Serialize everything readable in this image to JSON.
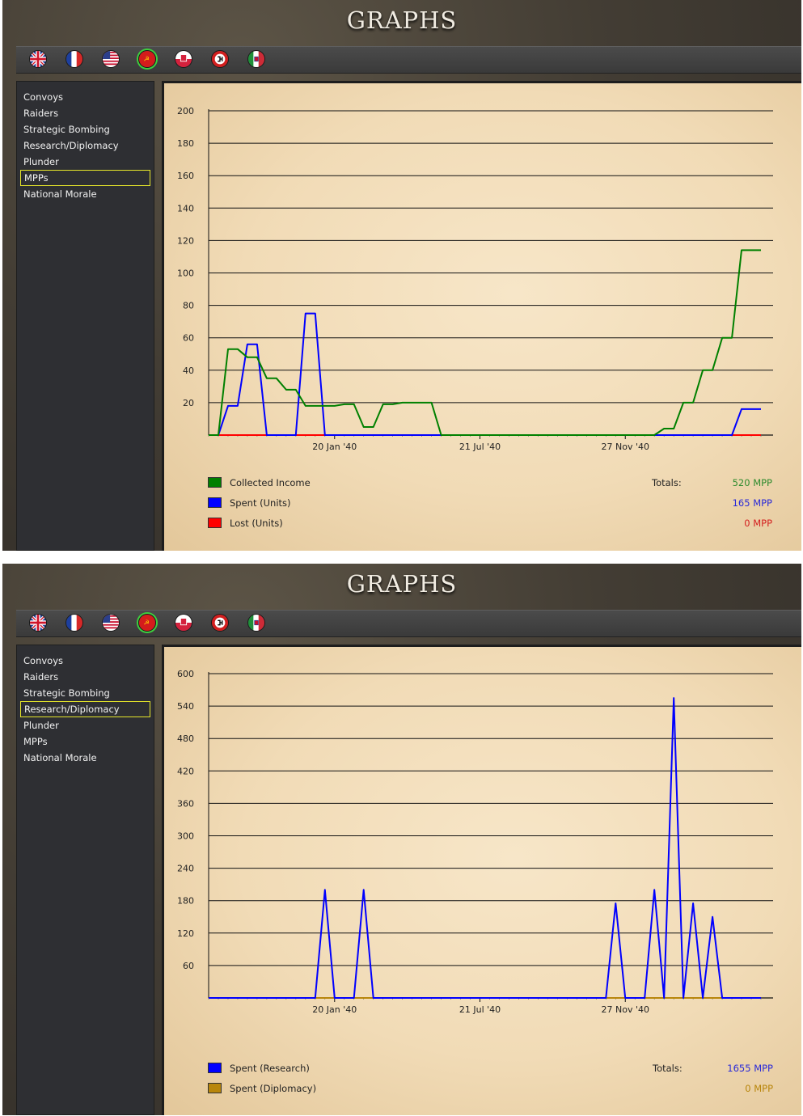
{
  "screens": [
    {
      "title": "GRAPHS",
      "menu": [
        "Convoys",
        "Raiders",
        "Strategic Bombing",
        "Research/Diplomacy",
        "Plunder",
        "MPPs",
        "National Morale"
      ],
      "active_menu": 5,
      "legend": [
        {
          "label": "Collected Income",
          "color": "#008000"
        },
        {
          "label": "Spent (Units)",
          "color": "#0000ff"
        },
        {
          "label": "Lost (Units)",
          "color": "#ff0000"
        }
      ],
      "totals_label": "Totals:",
      "totals": [
        {
          "value": "520 MPP",
          "color": "#2e8b2e"
        },
        {
          "value": "165 MPP",
          "color": "#2a2ad8"
        },
        {
          "value": "0 MPP",
          "color": "#d42020"
        }
      ]
    },
    {
      "title": "GRAPHS",
      "menu": [
        "Convoys",
        "Raiders",
        "Strategic Bombing",
        "Research/Diplomacy",
        "Plunder",
        "MPPs",
        "National Morale"
      ],
      "active_menu": 3,
      "legend": [
        {
          "label": "Spent (Research)",
          "color": "#0000ff"
        },
        {
          "label": "Spent (Diplomacy)",
          "color": "#b8860b"
        }
      ],
      "totals_label": "Totals:",
      "totals": [
        {
          "value": "1655 MPP",
          "color": "#2a2ad8"
        },
        {
          "value": "0 MPP",
          "color": "#b8860b"
        }
      ]
    }
  ],
  "flags": [
    "uk-flag",
    "france-flag",
    "usa-flag",
    "china-flag",
    "poland-flag",
    "germany-flag",
    "italy-flag"
  ],
  "selected_flag": 3,
  "chart_data": [
    {
      "type": "line",
      "title": "",
      "xlabel": "",
      "ylabel": "",
      "ylim": [
        0,
        200
      ],
      "yticks": [
        20,
        40,
        60,
        80,
        100,
        120,
        140,
        160,
        180,
        200
      ],
      "xticks": [
        {
          "label": "20 Jan '40",
          "index": 13
        },
        {
          "label": "21 Jul '40",
          "index": 28
        },
        {
          "label": "27 Nov '40",
          "index": 43
        }
      ],
      "n_points": 58,
      "grid": true,
      "series": [
        {
          "name": "Collected Income",
          "color": "#008000",
          "values": [
            0,
            0,
            53,
            53,
            48,
            48,
            35,
            35,
            28,
            28,
            18,
            18,
            18,
            18,
            19,
            19,
            5,
            5,
            19,
            19,
            20,
            20,
            20,
            20,
            0,
            0,
            0,
            0,
            0,
            0,
            0,
            0,
            0,
            0,
            0,
            0,
            0,
            0,
            0,
            0,
            0,
            0,
            0,
            0,
            0,
            0,
            0,
            4,
            4,
            20,
            20,
            40,
            40,
            60,
            60,
            114,
            114,
            114
          ]
        },
        {
          "name": "Spent (Units)",
          "color": "#0000ff",
          "values": [
            0,
            0,
            18,
            18,
            56,
            56,
            0,
            0,
            0,
            0,
            75,
            75,
            0,
            0,
            0,
            0,
            0,
            0,
            0,
            0,
            0,
            0,
            0,
            0,
            0,
            0,
            0,
            0,
            0,
            0,
            0,
            0,
            0,
            0,
            0,
            0,
            0,
            0,
            0,
            0,
            0,
            0,
            0,
            0,
            0,
            0,
            0,
            0,
            0,
            0,
            0,
            0,
            0,
            0,
            0,
            16,
            16,
            16
          ]
        },
        {
          "name": "Lost (Units)",
          "color": "#ff0000",
          "values": [
            0,
            0,
            0,
            0,
            0,
            0,
            0,
            0,
            0,
            0,
            0,
            0,
            0,
            0,
            0,
            0,
            0,
            0,
            0,
            0,
            0,
            0,
            0,
            0,
            0,
            0,
            0,
            0,
            0,
            0,
            0,
            0,
            0,
            0,
            0,
            0,
            0,
            0,
            0,
            0,
            0,
            0,
            0,
            0,
            0,
            0,
            0,
            0,
            0,
            0,
            0,
            0,
            0,
            0,
            0,
            0,
            0,
            0
          ]
        }
      ]
    },
    {
      "type": "line",
      "title": "",
      "xlabel": "",
      "ylabel": "",
      "ylim": [
        0,
        600
      ],
      "yticks": [
        60,
        120,
        180,
        240,
        300,
        360,
        420,
        480,
        540,
        600
      ],
      "xticks": [
        {
          "label": "20 Jan '40",
          "index": 13
        },
        {
          "label": "21 Jul '40",
          "index": 28
        },
        {
          "label": "27 Nov '40",
          "index": 43
        }
      ],
      "n_points": 58,
      "grid": true,
      "series": [
        {
          "name": "Spent (Research)",
          "color": "#0000ff",
          "values": [
            0,
            0,
            0,
            0,
            0,
            0,
            0,
            0,
            0,
            0,
            0,
            0,
            200,
            0,
            0,
            0,
            200,
            0,
            0,
            0,
            0,
            0,
            0,
            0,
            0,
            0,
            0,
            0,
            0,
            0,
            0,
            0,
            0,
            0,
            0,
            0,
            0,
            0,
            0,
            0,
            0,
            0,
            175,
            0,
            0,
            0,
            200,
            0,
            555,
            0,
            175,
            0,
            150,
            0,
            0,
            0,
            0,
            0
          ]
        },
        {
          "name": "Spent (Diplomacy)",
          "color": "#b8860b",
          "values": [
            0,
            0,
            0,
            0,
            0,
            0,
            0,
            0,
            0,
            0,
            0,
            0,
            0,
            0,
            0,
            0,
            0,
            0,
            0,
            0,
            0,
            0,
            0,
            0,
            0,
            0,
            0,
            0,
            0,
            0,
            0,
            0,
            0,
            0,
            0,
            0,
            0,
            0,
            0,
            0,
            0,
            0,
            0,
            0,
            0,
            0,
            0,
            0,
            0,
            0,
            0,
            0,
            0,
            0,
            0,
            0,
            0,
            0
          ]
        }
      ]
    }
  ]
}
